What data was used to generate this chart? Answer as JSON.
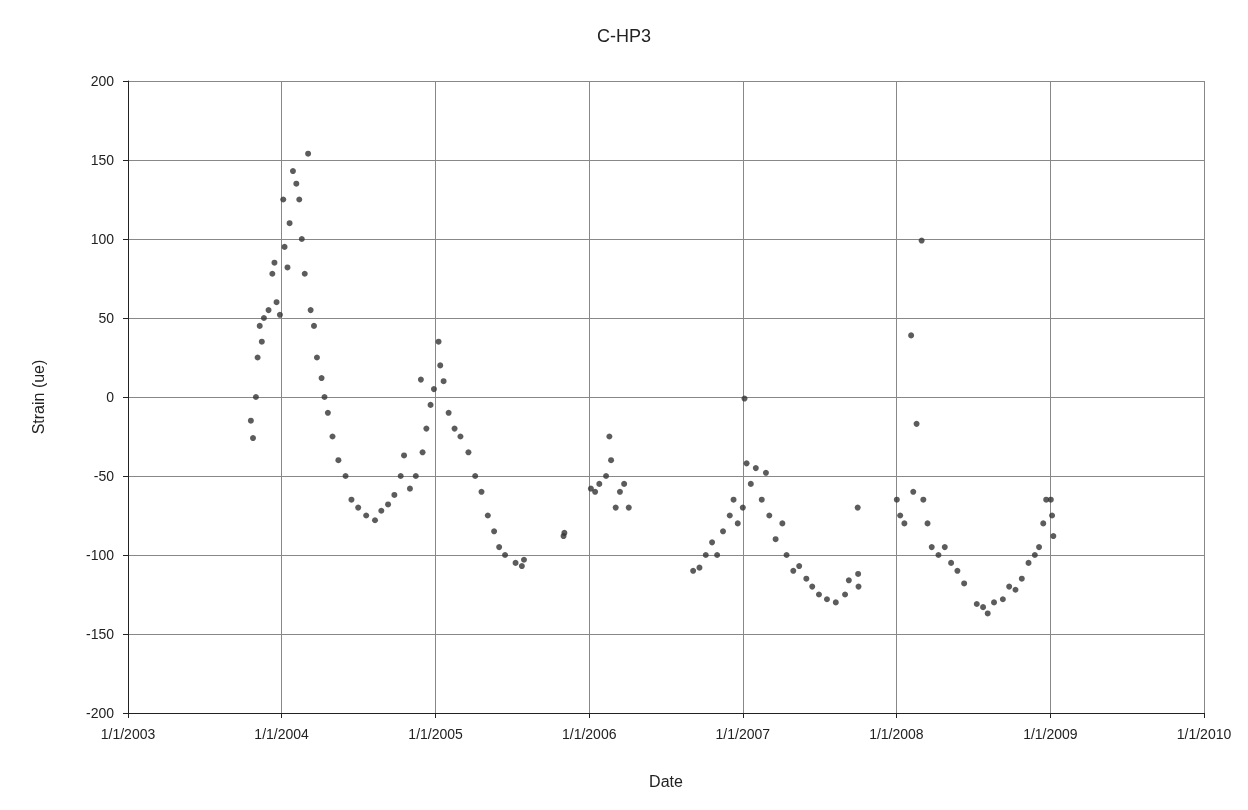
{
  "chart_data": {
    "type": "scatter",
    "title": "C-HP3",
    "xlabel": "Date",
    "ylabel": "Strain (ue)",
    "x": [
      "2003-10-20",
      "2003-10-25",
      "2003-11-01",
      "2003-11-05",
      "2003-11-10",
      "2003-11-15",
      "2003-11-20",
      "2003-12-01",
      "2003-12-10",
      "2003-12-15",
      "2003-12-20",
      "2003-12-28",
      "2004-01-05",
      "2004-01-08",
      "2004-01-15",
      "2004-01-20",
      "2004-01-28",
      "2004-02-05",
      "2004-02-12",
      "2004-02-18",
      "2004-02-25",
      "2004-03-04",
      "2004-03-10",
      "2004-03-18",
      "2004-03-25",
      "2004-04-05",
      "2004-04-12",
      "2004-04-20",
      "2004-05-01",
      "2004-05-15",
      "2004-06-01",
      "2004-06-15",
      "2004-07-01",
      "2004-07-20",
      "2004-08-10",
      "2004-08-25",
      "2004-09-10",
      "2004-09-25",
      "2004-10-10",
      "2004-10-18",
      "2004-11-01",
      "2004-11-15",
      "2004-11-27",
      "2004-12-01",
      "2004-12-10",
      "2004-12-20",
      "2004-12-28",
      "2005-01-08",
      "2005-01-12",
      "2005-01-20",
      "2005-02-01",
      "2005-02-15",
      "2005-03-01",
      "2005-03-20",
      "2005-04-05",
      "2005-04-20",
      "2005-05-05",
      "2005-05-20",
      "2005-06-01",
      "2005-06-15",
      "2005-07-10",
      "2005-07-25",
      "2005-07-30",
      "2005-11-01",
      "2005-11-03",
      "2006-01-05",
      "2006-01-15",
      "2006-01-25",
      "2006-02-10",
      "2006-02-18",
      "2006-02-22",
      "2006-03-05",
      "2006-03-15",
      "2006-03-25",
      "2006-04-05",
      "2006-09-05",
      "2006-09-20",
      "2006-10-05",
      "2006-10-20",
      "2006-11-01",
      "2006-11-15",
      "2006-12-01",
      "2006-12-10",
      "2006-12-20",
      "2007-01-01",
      "2007-01-05",
      "2007-01-10",
      "2007-01-20",
      "2007-02-01",
      "2007-02-15",
      "2007-02-25",
      "2007-03-05",
      "2007-03-20",
      "2007-04-05",
      "2007-04-15",
      "2007-05-01",
      "2007-05-15",
      "2007-06-01",
      "2007-06-15",
      "2007-07-01",
      "2007-07-20",
      "2007-08-10",
      "2007-09-01",
      "2007-09-10",
      "2007-10-01",
      "2007-10-02",
      "2007-10-03",
      "2008-01-02",
      "2008-01-10",
      "2008-01-20",
      "2008-02-05",
      "2008-02-10",
      "2008-02-18",
      "2008-03-01",
      "2008-03-05",
      "2008-03-15",
      "2008-03-25",
      "2008-04-10",
      "2008-04-25",
      "2008-05-10",
      "2008-05-25",
      "2008-06-10",
      "2008-07-10",
      "2008-07-25",
      "2008-08-05",
      "2008-08-20",
      "2008-09-10",
      "2008-09-25",
      "2008-10-10",
      "2008-10-25",
      "2008-11-10",
      "2008-11-25",
      "2008-12-05",
      "2008-12-15",
      "2008-12-22",
      "2009-01-02",
      "2009-01-05",
      "2009-01-08"
    ],
    "values": [
      -15,
      -26,
      0,
      25,
      45,
      35,
      50,
      55,
      78,
      85,
      60,
      52,
      125,
      95,
      82,
      110,
      143,
      135,
      125,
      100,
      78,
      154,
      55,
      45,
      25,
      12,
      0,
      -10,
      -25,
      -40,
      -50,
      -65,
      -70,
      -75,
      -78,
      -72,
      -68,
      -62,
      -50,
      -37,
      -58,
      -50,
      11,
      -35,
      -20,
      -5,
      5,
      35,
      20,
      10,
      -10,
      -20,
      -25,
      -35,
      -50,
      -60,
      -75,
      -85,
      -95,
      -100,
      -105,
      -107,
      -103,
      -88,
      -86,
      -58,
      -60,
      -55,
      -50,
      -25,
      -40,
      -70,
      -60,
      -55,
      -70,
      -110,
      -108,
      -100,
      -92,
      -100,
      -85,
      -75,
      -65,
      -80,
      -70,
      -1,
      -42,
      -55,
      -45,
      -65,
      -48,
      -75,
      -90,
      -80,
      -100,
      -110,
      -107,
      -115,
      -120,
      -125,
      -128,
      -130,
      -125,
      -116,
      -70,
      -112,
      -120,
      -65,
      -75,
      -80,
      39,
      -60,
      -17,
      99,
      -65,
      -80,
      -95,
      -100,
      -95,
      -105,
      -110,
      -118,
      -131,
      -133,
      -137,
      -130,
      -128,
      -120,
      -122,
      -115,
      -105,
      -100,
      -95,
      -80,
      -65,
      -65,
      -75,
      -88
    ],
    "color": "#333333",
    "marker": "circle",
    "grid": true,
    "xlim": [
      "2003-01-01",
      "2010-01-01"
    ],
    "xticks": [
      {
        "value": "2003-01-01",
        "label": "1/1/2003"
      },
      {
        "value": "2004-01-01",
        "label": "1/1/2004"
      },
      {
        "value": "2005-01-01",
        "label": "1/1/2005"
      },
      {
        "value": "2006-01-01",
        "label": "1/1/2006"
      },
      {
        "value": "2007-01-01",
        "label": "1/1/2007"
      },
      {
        "value": "2008-01-01",
        "label": "1/1/2008"
      },
      {
        "value": "2009-01-01",
        "label": "1/1/2009"
      },
      {
        "value": "2010-01-01",
        "label": "1/1/2010"
      }
    ],
    "ylim": [
      -200,
      200
    ],
    "yticks": [
      -200,
      -150,
      -100,
      -50,
      0,
      50,
      100,
      150,
      200
    ]
  }
}
